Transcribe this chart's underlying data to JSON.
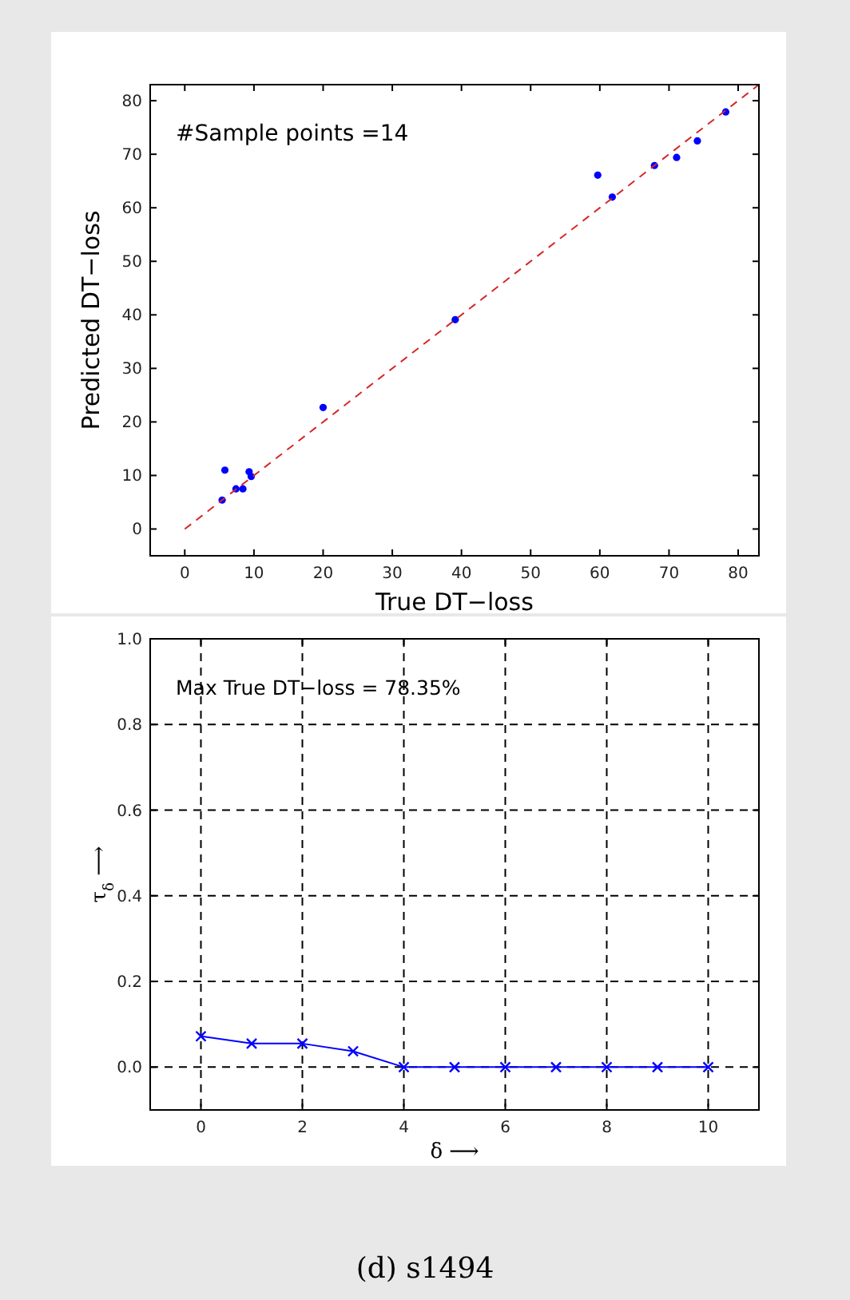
{
  "chart_data": [
    {
      "type": "scatter",
      "xlabel": "True DT−loss",
      "ylabel": "Predicted DT−loss",
      "annotations": [
        "#Sample points =14"
      ],
      "xlim": [
        -5,
        83
      ],
      "ylim": [
        -5,
        83
      ],
      "xticks": [
        0,
        10,
        20,
        30,
        40,
        50,
        60,
        70,
        80
      ],
      "yticks": [
        0,
        10,
        20,
        30,
        40,
        50,
        60,
        70,
        80
      ],
      "grid": false,
      "series": [
        {
          "type": "scatter",
          "color": "#0000ff",
          "marker": "circle",
          "x": [
            5.4,
            5.8,
            7.4,
            8.4,
            9.3,
            9.6,
            20.0,
            39.1,
            59.7,
            61.8,
            67.9,
            71.1,
            74.1,
            78.2
          ],
          "values": [
            5.4,
            11.0,
            7.5,
            7.5,
            10.7,
            9.8,
            22.7,
            39.1,
            66.1,
            62.0,
            67.9,
            69.4,
            72.5,
            77.9
          ]
        },
        {
          "type": "line",
          "color": "#d62728",
          "marker": "none",
          "line_style": "dashed",
          "x": [
            0,
            83
          ],
          "values": [
            0,
            83
          ]
        }
      ]
    },
    {
      "type": "line",
      "xlabel": "δ ⟶",
      "ylabel": "τ$_{δ}$ ⟶",
      "annotations": [
        "Max True DT−loss  = 78.35%",
        "(d) s1494"
      ],
      "xlim": [
        -1,
        11
      ],
      "ylim": [
        -0.1,
        1.0
      ],
      "xticks": [
        0,
        2,
        4,
        6,
        8,
        10
      ],
      "yticks": [
        {
          "value": 0,
          "label": "0.0"
        },
        {
          "value": 0.2,
          "label": "0.2"
        },
        {
          "value": 0.4,
          "label": "0.4"
        },
        {
          "value": 0.6,
          "label": "0.6"
        },
        {
          "value": 0.8,
          "label": "0.8"
        },
        {
          "value": 1.0,
          "label": "1.0"
        }
      ],
      "grid": true,
      "series": [
        {
          "color": "#0000ff",
          "marker": "cross",
          "line_style": "solid",
          "x": [
            0,
            1,
            2,
            3,
            4,
            5,
            6,
            7,
            8,
            9,
            10
          ],
          "values": [
            0.072,
            0.055,
            0.055,
            0.037,
            0,
            0,
            0,
            0,
            0,
            0,
            0
          ]
        }
      ]
    }
  ]
}
